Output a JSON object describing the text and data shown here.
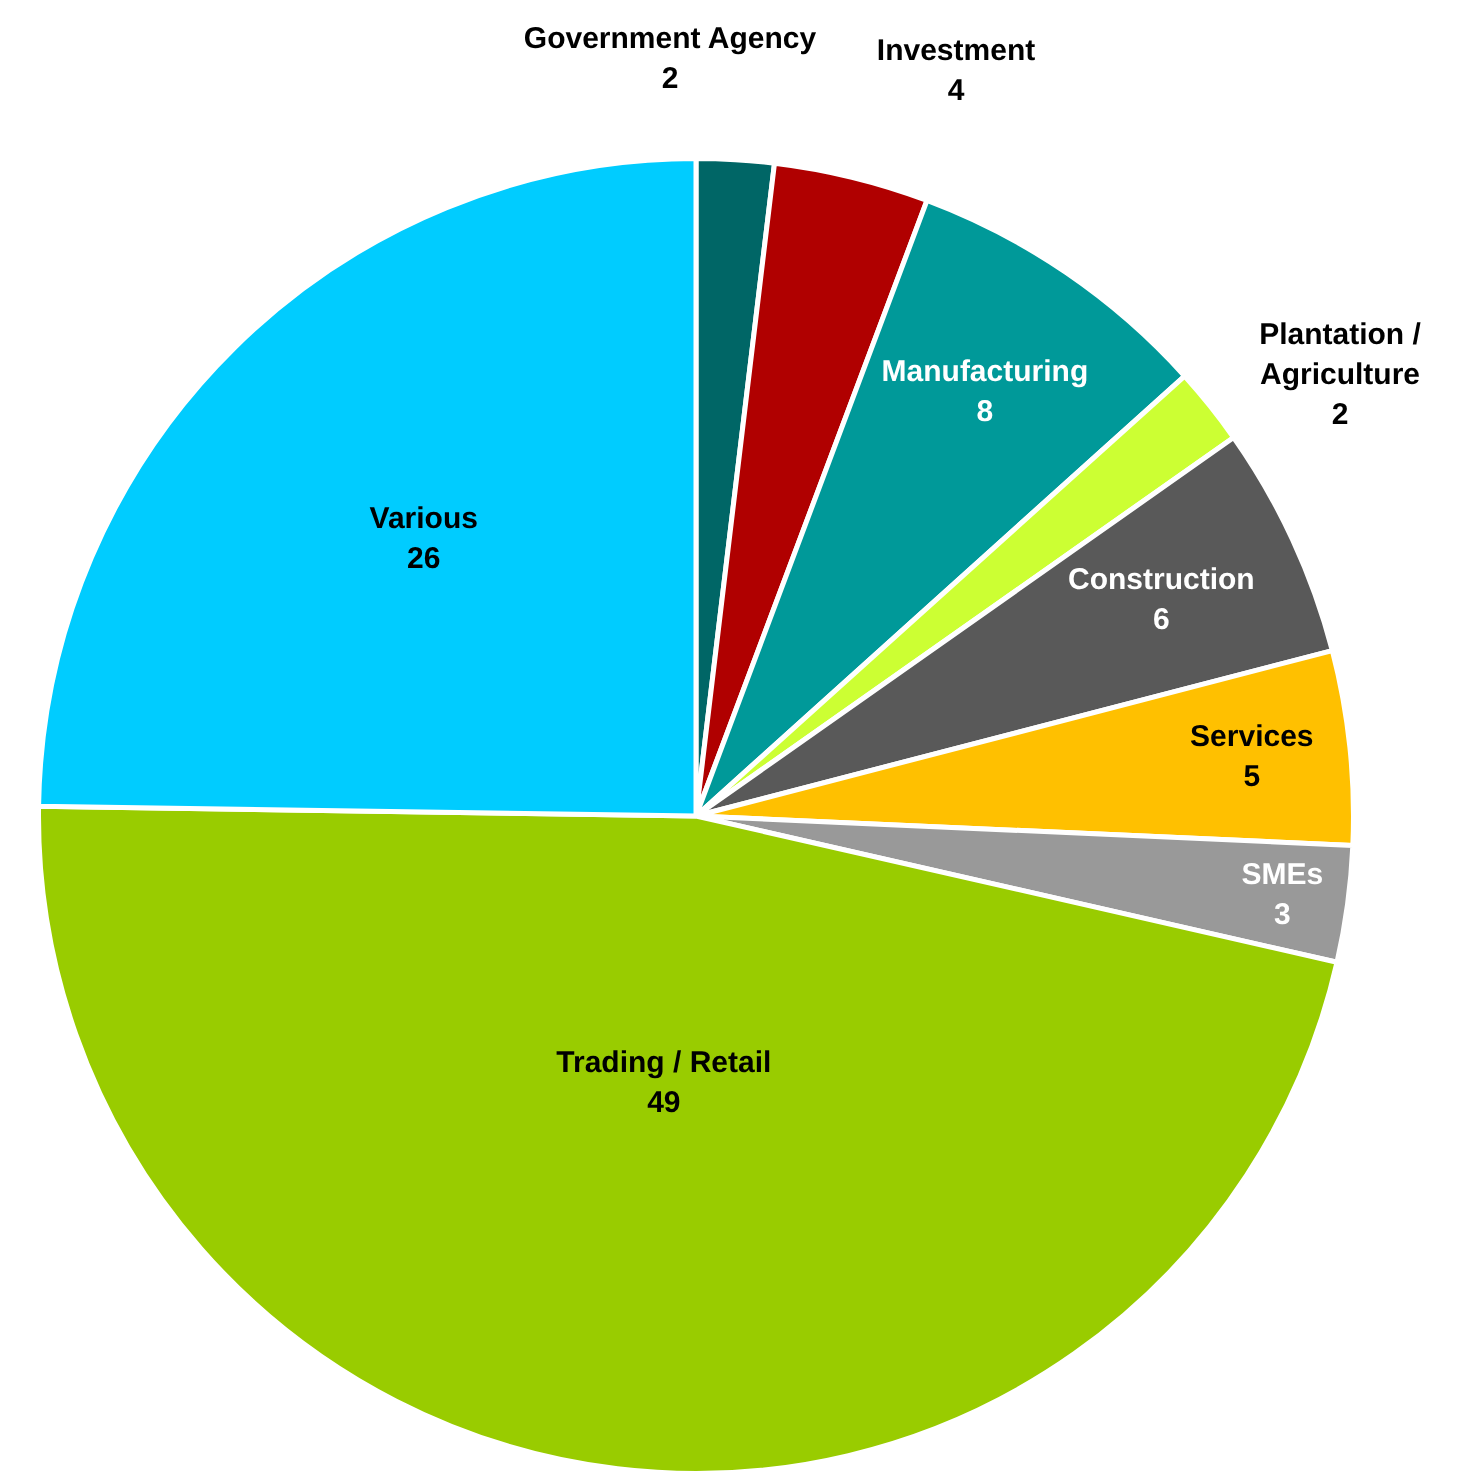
{
  "chart_data": {
    "type": "pie",
    "categories": [
      "Government Agency",
      "Investment",
      "Manufacturing",
      "Plantation / Agriculture",
      "Construction",
      "Services",
      "SMEs",
      "Trading / Retail",
      "Various"
    ],
    "values": [
      2,
      4,
      8,
      2,
      6,
      5,
      3,
      49,
      26
    ],
    "colors": [
      "#006666",
      "#b00000",
      "#009999",
      "#ccff33",
      "#595959",
      "#ffc000",
      "#999999",
      "#99cc00",
      "#00ccff"
    ],
    "data_labels": true,
    "legend": false
  }
}
